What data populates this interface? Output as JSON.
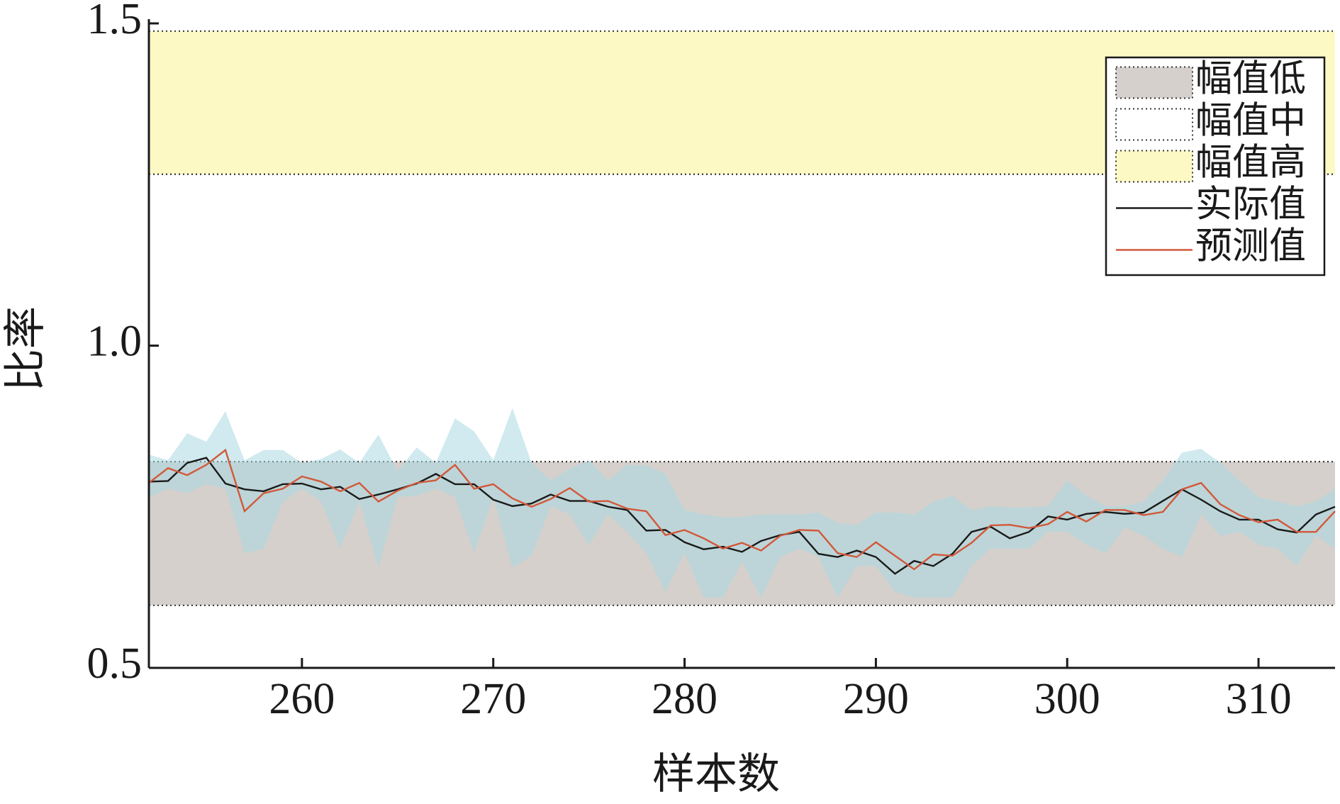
{
  "chart_data": {
    "type": "line",
    "xlabel": "样本数",
    "ylabel": "比率",
    "xlim": [
      252,
      314
    ],
    "ylim": [
      0.5,
      1.5
    ],
    "xticks": [
      260,
      270,
      280,
      290,
      300,
      310
    ],
    "yticks": [
      0.5,
      {
        "value": 1,
        "label": "1.0"
      },
      1.5
    ],
    "legend": "upper right",
    "bands": [
      {
        "name": "幅值低",
        "color": "#d5d0cc",
        "from": 0.597,
        "to": 0.82
      },
      {
        "name": "幅值中",
        "color": "#ffffff",
        "from": 0.82,
        "to": 1.266
      },
      {
        "name": "幅值高",
        "color": "#fdf9c4",
        "from": 1.266,
        "to": 1.488
      }
    ],
    "interval": {
      "color": "#a9d9e2",
      "upper": [
        0.831,
        0.822,
        0.864,
        0.851,
        0.898,
        0.822,
        0.838,
        0.838,
        0.818,
        0.824,
        0.839,
        0.818,
        0.862,
        0.805,
        0.842,
        0.818,
        0.887,
        0.867,
        0.822,
        0.903,
        0.818,
        0.791,
        0.809,
        0.822,
        0.791,
        0.815,
        0.814,
        0.801,
        0.745,
        0.738,
        0.734,
        0.734,
        0.738,
        0.738,
        0.738,
        0.741,
        0.725,
        0.722,
        0.741,
        0.741,
        0.738,
        0.758,
        0.767,
        0.745,
        0.751,
        0.749,
        0.749,
        0.751,
        0.791,
        0.767,
        0.751,
        0.751,
        0.758,
        0.791,
        0.834,
        0.84,
        0.818,
        0.791,
        0.765,
        0.758,
        0.751,
        0.758,
        0.778
      ],
      "lower": [
        0.765,
        0.778,
        0.771,
        0.785,
        0.778,
        0.678,
        0.685,
        0.758,
        0.778,
        0.758,
        0.685,
        0.758,
        0.656,
        0.765,
        0.767,
        0.778,
        0.765,
        0.678,
        0.765,
        0.656,
        0.674,
        0.751,
        0.738,
        0.691,
        0.738,
        0.711,
        0.678,
        0.618,
        0.678,
        0.609,
        0.609,
        0.665,
        0.609,
        0.672,
        0.685,
        0.672,
        0.609,
        0.658,
        0.658,
        0.618,
        0.609,
        0.609,
        0.609,
        0.658,
        0.685,
        0.685,
        0.685,
        0.711,
        0.711,
        0.691,
        0.678,
        0.718,
        0.705,
        0.685,
        0.672,
        0.738,
        0.705,
        0.711,
        0.691,
        0.685,
        0.658,
        0.705,
        0.685
      ]
    },
    "x": [
      252,
      253,
      254,
      255,
      256,
      257,
      258,
      259,
      260,
      261,
      262,
      263,
      264,
      265,
      266,
      267,
      268,
      269,
      270,
      271,
      272,
      273,
      274,
      275,
      276,
      277,
      278,
      279,
      280,
      281,
      282,
      283,
      284,
      285,
      286,
      287,
      288,
      289,
      290,
      291,
      292,
      293,
      294,
      295,
      296,
      297,
      298,
      299,
      300,
      301,
      302,
      303,
      304,
      305,
      306,
      307,
      308,
      309,
      310,
      311,
      312,
      313,
      314
    ],
    "series": [
      {
        "name": "实际值",
        "color": "#1a1a1a",
        "values": [
          0.789,
          0.79,
          0.818,
          0.826,
          0.786,
          0.777,
          0.774,
          0.785,
          0.786,
          0.777,
          0.781,
          0.762,
          0.769,
          0.777,
          0.786,
          0.801,
          0.785,
          0.785,
          0.761,
          0.751,
          0.755,
          0.769,
          0.759,
          0.759,
          0.75,
          0.745,
          0.713,
          0.714,
          0.695,
          0.684,
          0.688,
          0.68,
          0.697,
          0.706,
          0.711,
          0.677,
          0.672,
          0.682,
          0.672,
          0.646,
          0.666,
          0.658,
          0.677,
          0.711,
          0.719,
          0.701,
          0.711,
          0.735,
          0.73,
          0.739,
          0.742,
          0.739,
          0.741,
          0.759,
          0.777,
          0.761,
          0.743,
          0.73,
          0.73,
          0.715,
          0.71,
          0.738,
          0.75
        ]
      },
      {
        "name": "预测值",
        "color": "#d2583a",
        "values": [
          0.787,
          0.81,
          0.799,
          0.815,
          0.838,
          0.743,
          0.771,
          0.778,
          0.797,
          0.789,
          0.774,
          0.787,
          0.758,
          0.775,
          0.787,
          0.791,
          0.815,
          0.778,
          0.785,
          0.763,
          0.75,
          0.762,
          0.779,
          0.758,
          0.759,
          0.747,
          0.743,
          0.706,
          0.714,
          0.701,
          0.685,
          0.694,
          0.682,
          0.705,
          0.714,
          0.713,
          0.678,
          0.672,
          0.695,
          0.674,
          0.653,
          0.676,
          0.674,
          0.694,
          0.721,
          0.722,
          0.717,
          0.723,
          0.742,
          0.727,
          0.745,
          0.745,
          0.737,
          0.742,
          0.777,
          0.787,
          0.754,
          0.737,
          0.726,
          0.73,
          0.711,
          0.711,
          0.743
        ]
      }
    ]
  }
}
